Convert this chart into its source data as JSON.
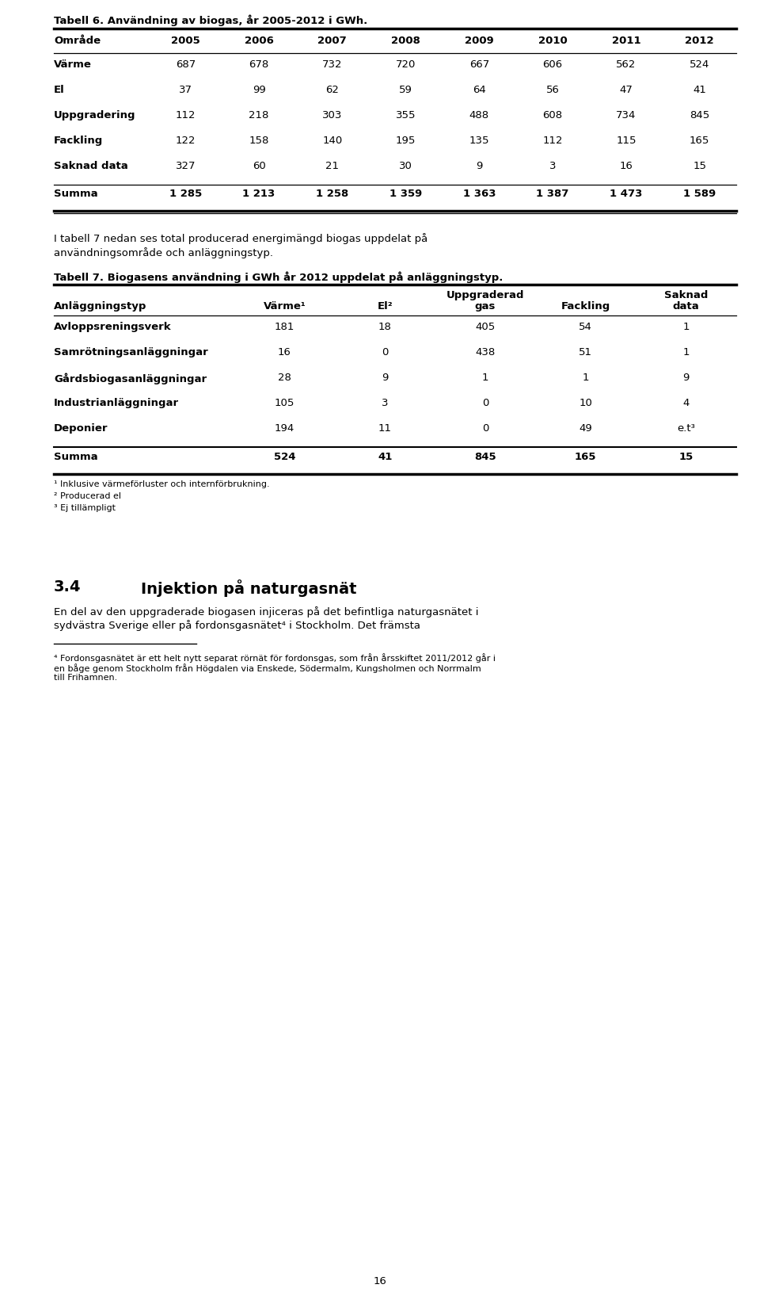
{
  "page_width": 9.6,
  "page_height": 16.35,
  "background_color": "#ffffff",
  "text_color": "#000000",
  "table6_title": "Tabell 6. Användning av biogas, år 2005-2012 i GWh.",
  "table6_headers": [
    "Område",
    "2005",
    "2006",
    "2007",
    "2008",
    "2009",
    "2010",
    "2011",
    "2012"
  ],
  "table6_rows": [
    [
      "Värme",
      "687",
      "678",
      "732",
      "720",
      "667",
      "606",
      "562",
      "524"
    ],
    [
      "El",
      "37",
      "99",
      "62",
      "59",
      "64",
      "56",
      "47",
      "41"
    ],
    [
      "Uppgradering",
      "112",
      "218",
      "303",
      "355",
      "488",
      "608",
      "734",
      "845"
    ],
    [
      "Fackling",
      "122",
      "158",
      "140",
      "195",
      "135",
      "112",
      "115",
      "165"
    ],
    [
      "Saknad data",
      "327",
      "60",
      "21",
      "30",
      "9",
      "3",
      "16",
      "15"
    ]
  ],
  "table6_summa": [
    "Summa",
    "1 285",
    "1 213",
    "1 258",
    "1 359",
    "1 363",
    "1 387",
    "1 473",
    "1 589"
  ],
  "paragraph1_line1": "I tabell 7 nedan ses total producerad energimängd biogas uppdelat på",
  "paragraph1_line2": "användningsområde och anläggningstyp.",
  "table7_title": "Tabell 7. Biogasens användning i GWh år 2012 uppdelat på anläggningstyp.",
  "table7_col1_header": "Anläggningstyp",
  "table7_col_headers": [
    "Värme¹",
    "El²",
    "Uppgraderad\ngas",
    "Fackling",
    "Saknad\ndata"
  ],
  "table7_rows": [
    [
      "Avloppsreningsverk",
      "181",
      "18",
      "405",
      "54",
      "1"
    ],
    [
      "Samrötningsanläggningar",
      "16",
      "0",
      "438",
      "51",
      "1"
    ],
    [
      "Gårdsbiogasanläggningar",
      "28",
      "9",
      "1",
      "1",
      "9"
    ],
    [
      "Industrianläggningar",
      "105",
      "3",
      "0",
      "10",
      "4"
    ],
    [
      "Deponier",
      "194",
      "11",
      "0",
      "49",
      "e.t³"
    ]
  ],
  "table7_summa": [
    "Summa",
    "524",
    "41",
    "845",
    "165",
    "15"
  ],
  "footnotes": [
    "¹ Inklusive värmeförluster och internförbrukning.",
    "² Producerad el",
    "³ Ej tillämpligt"
  ],
  "section_heading_num": "3.4",
  "section_heading_tab": 0.115,
  "section_heading_title": "Injektion på naturgasnät",
  "section_paragraph_line1": "En del av den uppgraderade biogasen injiceras på det befintliga naturgasnätet i",
  "section_paragraph_line2": "sydvästra Sverige eller på fordonsgasnätet⁴ i Stockholm. Det främsta",
  "footnote4_text_line1": "⁴ Fordonsgasnätet är ett helt nytt separat rörnät för fordonsgas, som från årsskiftet 2011/2012 går i",
  "footnote4_text_line2": "en båge genom Stockholm från Högdalen via Enskede, Södermalm, Kungsholmen och Norrmalm",
  "footnote4_text_line3": "till Frihamnen.",
  "page_number": "16"
}
